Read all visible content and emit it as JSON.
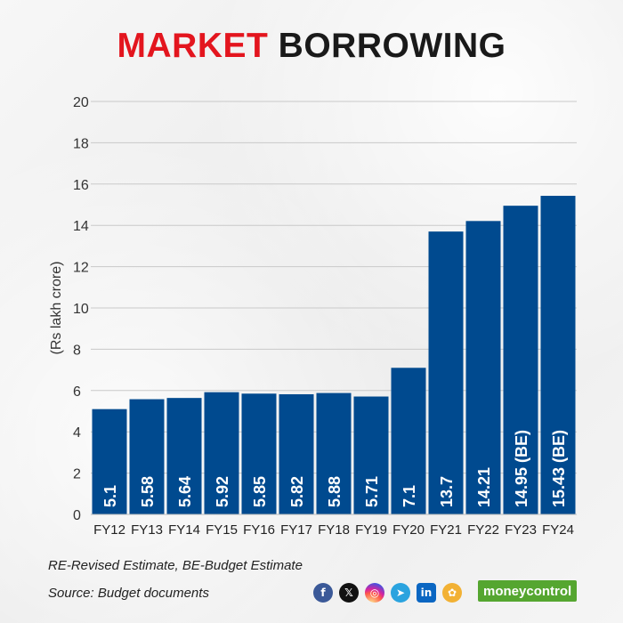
{
  "title": {
    "word1": "MARKET",
    "word2": "BORROWING"
  },
  "chart_data": {
    "type": "bar",
    "title": "MARKET BORROWING",
    "xlabel": "",
    "ylabel": "(Rs lakh crore)",
    "ylim": [
      0,
      20
    ],
    "yticks": [
      0,
      2,
      4,
      6,
      8,
      10,
      12,
      14,
      16,
      18,
      20
    ],
    "grid": true,
    "categories": [
      "FY12",
      "FY13",
      "FY14",
      "FY15",
      "FY16",
      "FY17",
      "FY18",
      "FY19",
      "FY20",
      "FY21",
      "FY22",
      "FY23",
      "FY24"
    ],
    "values": [
      5.1,
      5.58,
      5.64,
      5.92,
      5.85,
      5.82,
      5.88,
      5.71,
      7.1,
      13.7,
      14.21,
      14.95,
      15.43
    ],
    "data_labels": [
      "5.1",
      "5.58",
      "5.64",
      "5.92",
      "5.85",
      "5.82",
      "5.88",
      "5.71",
      "7.1",
      "13.7",
      "14.21",
      "14.95 (BE)",
      "15.43 (BE)"
    ],
    "bar_color": "#004a8f",
    "label_color": "#ffffff"
  },
  "notes": {
    "line1": "RE-Revised Estimate, BE-Budget Estimate",
    "line2": "Source: Budget documents"
  },
  "social": {
    "icons": [
      "facebook-icon",
      "x-icon",
      "instagram-icon",
      "telegram-icon",
      "linkedin-icon",
      "koo-icon"
    ],
    "glyphs": [
      "f",
      "𝕏",
      "◎",
      "➤",
      "in",
      "✿"
    ]
  },
  "brand": {
    "name": "moneycontrol"
  },
  "colors": {
    "accent_red": "#e3151e",
    "bar_blue": "#004a8f",
    "brand_green": "#55a630"
  }
}
